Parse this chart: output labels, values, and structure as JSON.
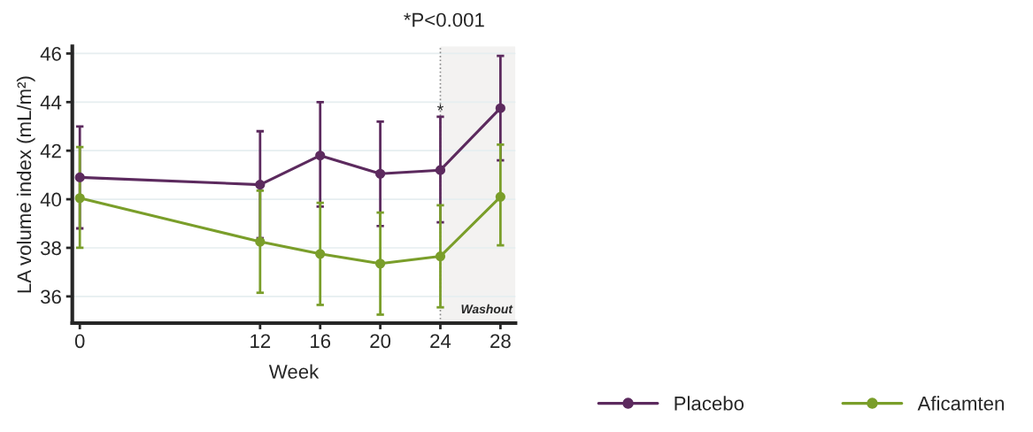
{
  "chart_data": {
    "type": "line",
    "xlabel": "Week",
    "ylabel": "LA volume index (mL/m²)",
    "x": [
      0,
      12,
      16,
      20,
      24,
      28
    ],
    "series": [
      {
        "name": "Placebo",
        "color": "#5c2a5e",
        "values": [
          40.9,
          40.6,
          41.8,
          41.05,
          41.2,
          43.75
        ],
        "errors": [
          [
            38.8,
            43.0
          ],
          [
            38.4,
            42.8
          ],
          [
            39.7,
            44.0
          ],
          [
            38.9,
            43.2
          ],
          [
            39.05,
            43.4
          ],
          [
            41.6,
            45.9
          ]
        ]
      },
      {
        "name": "Aficamten",
        "color": "#7a9e2a",
        "values": [
          40.05,
          38.25,
          37.75,
          37.35,
          37.65,
          40.1
        ],
        "errors": [
          [
            38.0,
            42.15
          ],
          [
            36.15,
            40.35
          ],
          [
            35.65,
            39.85
          ],
          [
            35.25,
            39.45
          ],
          [
            35.55,
            39.75
          ],
          [
            38.1,
            42.25
          ]
        ]
      }
    ],
    "xlim": [
      -0.5,
      29
    ],
    "xticks": [
      0,
      12,
      16,
      20,
      24,
      28
    ],
    "ylim": [
      34.9,
      46.3
    ],
    "yticks": [
      36,
      38,
      40,
      42,
      44,
      46
    ],
    "ref_lines": [
      {
        "axis": "x",
        "value": 24,
        "color": "#888888",
        "line_style": "dotted"
      }
    ],
    "bands": [
      {
        "axis": "x",
        "from": 24,
        "to": 29,
        "label": "Washout",
        "color": "#f3f2f1"
      }
    ],
    "annotations": [
      {
        "text": "*",
        "x": 24,
        "y": 43.6
      },
      "*P<0.001"
    ],
    "grid": "y",
    "legend": "bottom right",
    "marker": "circle",
    "line_style": "solid"
  }
}
